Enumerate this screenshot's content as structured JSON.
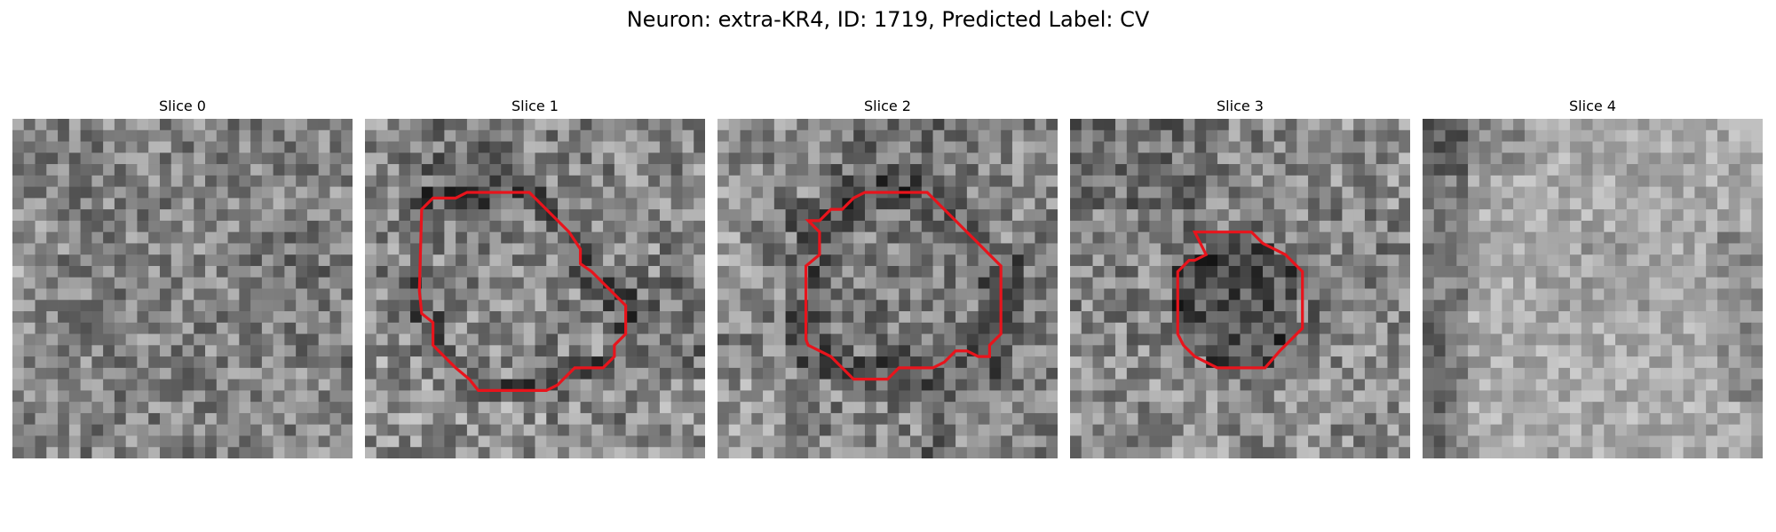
{
  "title": "Neuron: extra-KR4, ID: 1719, Predicted Label: CV",
  "grid_size": 30,
  "colormap": "gray",
  "contour_color": "#e8141c",
  "panels": [
    {
      "title": "Slice 0",
      "has_contour": false,
      "pattern": "noise"
    },
    {
      "title": "Slice 1",
      "has_contour": true,
      "pattern": "dark-ring"
    },
    {
      "title": "Slice 2",
      "has_contour": true,
      "pattern": "dark-ring"
    },
    {
      "title": "Slice 3",
      "has_contour": true,
      "pattern": "dark-core"
    },
    {
      "title": "Slice 4",
      "has_contour": false,
      "pattern": "bright-with-dark-left-edge"
    }
  ]
}
